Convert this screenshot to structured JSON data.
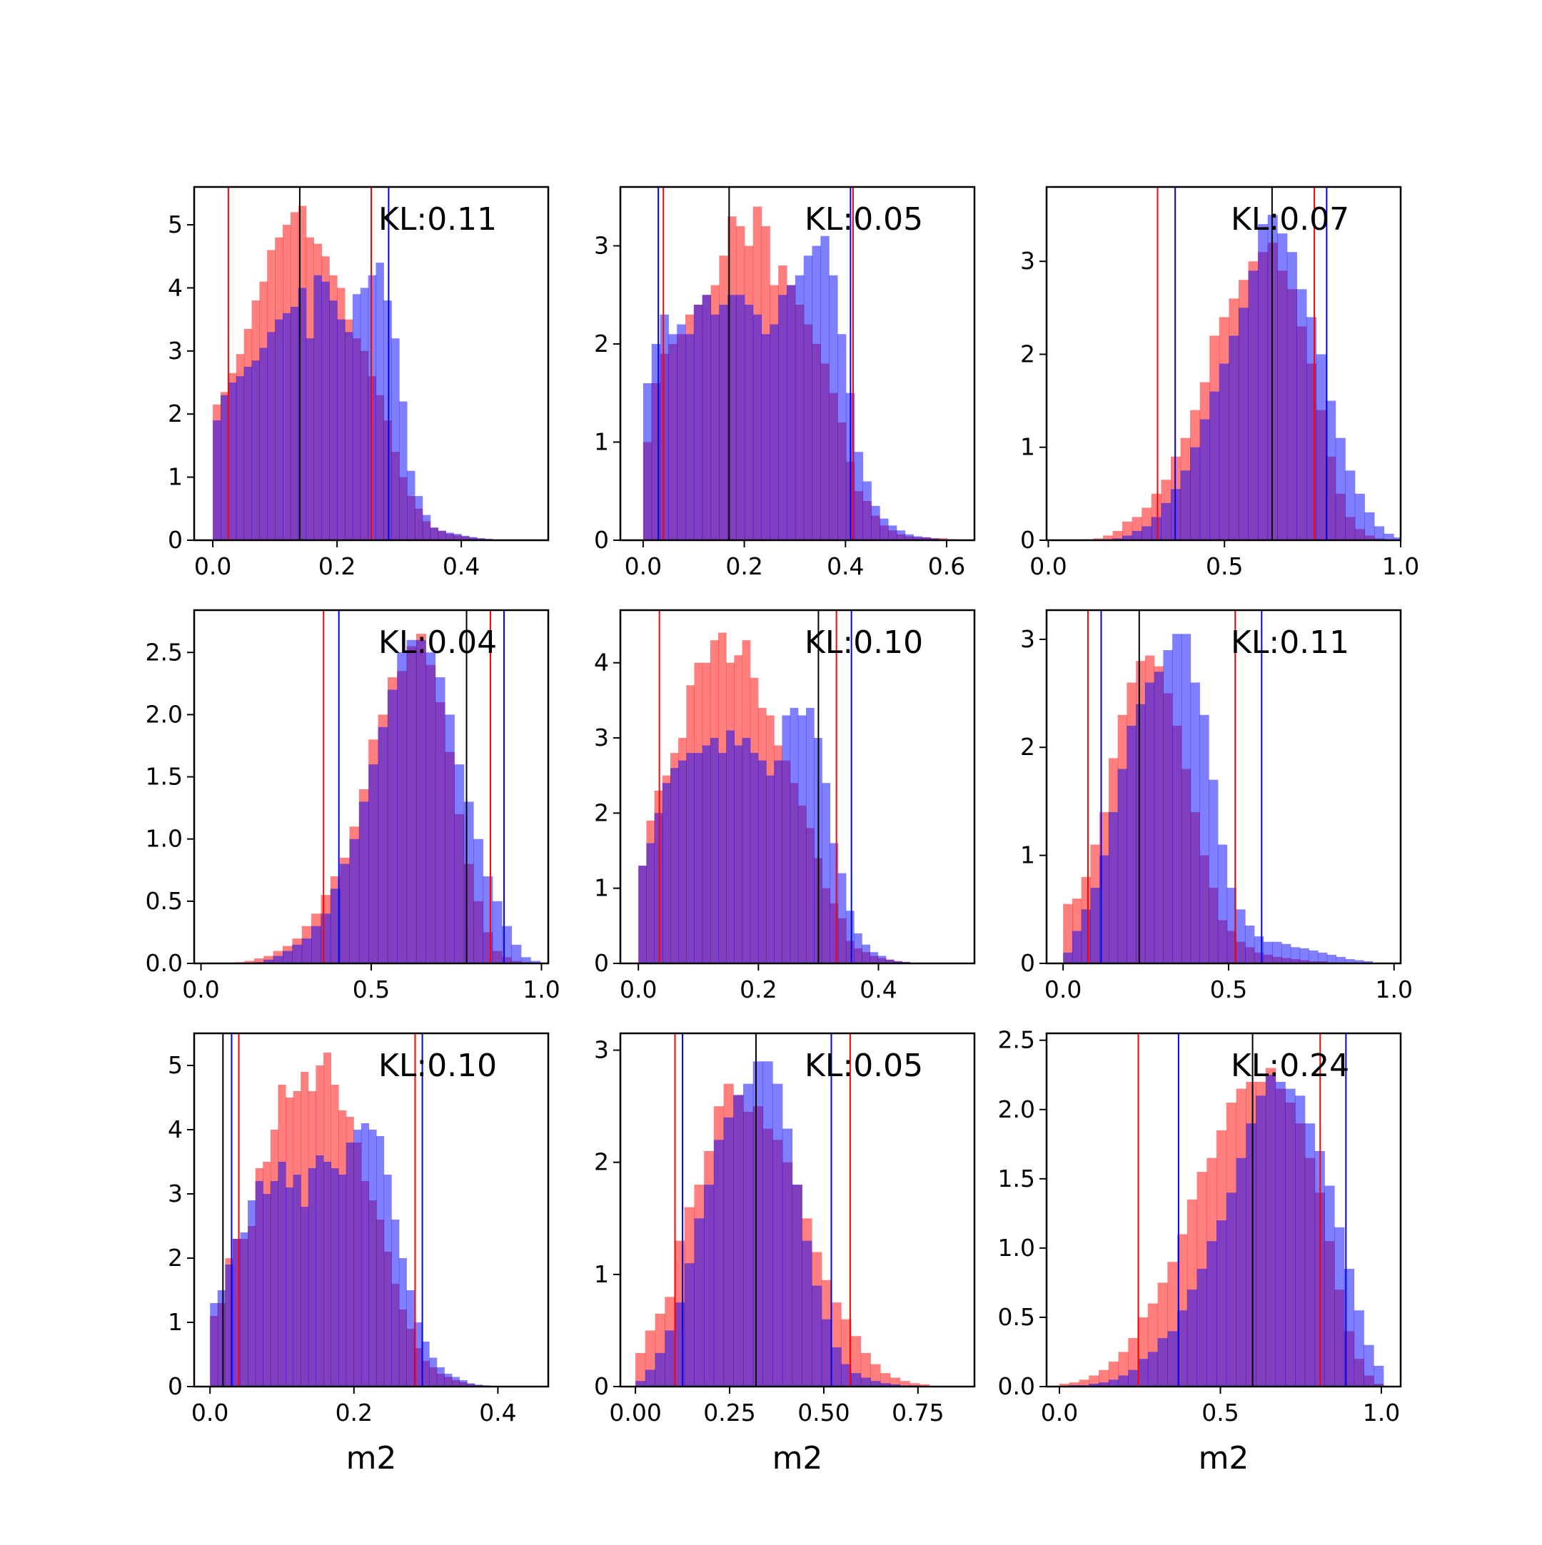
{
  "figure": {
    "colors": {
      "series_a": "#ff0000",
      "series_b": "#0000ff",
      "overlap": "#7f3fbf",
      "median_line": "#000000",
      "axes": "#000000"
    },
    "bar_opacity": 0.5
  },
  "chart_data": [
    {
      "type": "bar",
      "annotation": "KL:0.11",
      "xlabel": "",
      "xlim": [
        -0.03,
        0.54
      ],
      "ylim": [
        0,
        5.6
      ],
      "xticks": [
        "0.0",
        "0.2",
        "0.4"
      ],
      "xtick_values": [
        0.0,
        0.2,
        0.4
      ],
      "yticks": [
        "0",
        "1",
        "2",
        "3",
        "4",
        "5"
      ],
      "ytick_values": [
        0,
        1,
        2,
        3,
        4,
        5
      ],
      "bins": {
        "start": 0.0,
        "width": 0.0125
      },
      "series": [
        {
          "color": "red",
          "values": [
            2.15,
            2.35,
            2.65,
            2.95,
            3.35,
            3.8,
            4.1,
            4.6,
            4.8,
            5.0,
            5.2,
            5.3,
            4.8,
            4.7,
            4.5,
            4.2,
            4.0,
            3.5,
            3.2,
            3.0,
            2.6,
            2.3,
            1.9,
            1.4,
            1.0,
            0.7,
            0.5,
            0.3,
            0.2,
            0.15,
            0.1,
            0.08,
            0.06,
            0.04,
            0.03,
            0.02
          ]
        },
        {
          "color": "blue",
          "values": [
            1.9,
            2.3,
            2.5,
            2.6,
            2.75,
            2.85,
            3.05,
            3.3,
            3.5,
            3.6,
            3.7,
            4.0,
            3.2,
            4.2,
            4.1,
            3.8,
            3.5,
            3.3,
            3.9,
            4.0,
            4.2,
            4.4,
            3.8,
            3.2,
            2.2,
            1.1,
            0.7,
            0.4,
            0.2,
            0.15,
            0.12,
            0.1,
            0.07,
            0.05,
            0.03,
            0.02
          ]
        }
      ],
      "vlines": {
        "red": [
          0.025,
          0.255
        ],
        "blue": [
          0.283
        ],
        "black": [
          0.14
        ]
      }
    },
    {
      "type": "bar",
      "annotation": "KL:0.05",
      "xlabel": "",
      "xlim": [
        -0.045,
        0.655
      ],
      "ylim": [
        0,
        3.6
      ],
      "xticks": [
        "0.0",
        "0.2",
        "0.4",
        "0.6"
      ],
      "xtick_values": [
        0.0,
        0.2,
        0.4,
        0.6
      ],
      "yticks": [
        "0",
        "1",
        "2",
        "3"
      ],
      "ytick_values": [
        0,
        1,
        2,
        3
      ],
      "bins": {
        "start": 0.0,
        "width": 0.0167
      },
      "series": [
        {
          "color": "red",
          "values": [
            1.0,
            1.6,
            1.9,
            2.0,
            2.1,
            2.3,
            2.4,
            2.5,
            2.6,
            2.9,
            3.3,
            3.2,
            3.0,
            3.4,
            3.2,
            2.6,
            2.8,
            2.6,
            2.4,
            2.2,
            2.0,
            1.8,
            1.5,
            1.2,
            0.8,
            0.5,
            0.4,
            0.25,
            0.15,
            0.1,
            0.06,
            0.04,
            0.03,
            0.03,
            0.02,
            0.02,
            0.01
          ]
        },
        {
          "color": "blue",
          "values": [
            1.6,
            2.0,
            2.3,
            2.1,
            2.2,
            2.1,
            2.4,
            2.5,
            2.3,
            2.4,
            2.5,
            2.5,
            2.4,
            2.3,
            2.1,
            2.2,
            2.5,
            2.6,
            2.7,
            2.9,
            3.0,
            3.1,
            2.7,
            2.1,
            1.5,
            0.9,
            0.6,
            0.35,
            0.22,
            0.15,
            0.1,
            0.06,
            0.04,
            0.03,
            0.02,
            0.01,
            0.01
          ]
        }
      ],
      "vlines": {
        "red": [
          0.04,
          0.415
        ],
        "blue": [
          0.03,
          0.41
        ],
        "black": [
          0.17
        ]
      }
    },
    {
      "type": "bar",
      "annotation": "KL:0.07",
      "xlabel": "",
      "xlim": [
        -0.005,
        1.0
      ],
      "ylim": [
        0,
        3.8
      ],
      "xticks": [
        "0.0",
        "0.5",
        "1.0"
      ],
      "xtick_values": [
        0.0,
        0.5,
        1.0
      ],
      "yticks": [
        "0",
        "1",
        "2",
        "3"
      ],
      "ytick_values": [
        0,
        1,
        2,
        3
      ],
      "bins": {
        "start": 0.1,
        "width": 0.0275
      },
      "series": [
        {
          "color": "red",
          "values": [
            0.01,
            0.02,
            0.05,
            0.1,
            0.2,
            0.25,
            0.35,
            0.5,
            0.65,
            0.9,
            1.1,
            1.4,
            1.7,
            2.2,
            2.4,
            2.6,
            2.8,
            3.0,
            3.1,
            3.2,
            2.9,
            2.7,
            2.3,
            1.9,
            1.4,
            0.9,
            0.5,
            0.25,
            0.12,
            0.05,
            0.02,
            0.01,
            0.0
          ]
        },
        {
          "color": "blue",
          "values": [
            0.0,
            0.0,
            0.01,
            0.02,
            0.05,
            0.1,
            0.15,
            0.25,
            0.4,
            0.55,
            0.75,
            1.0,
            1.3,
            1.6,
            1.9,
            2.2,
            2.5,
            2.9,
            3.4,
            3.5,
            3.3,
            3.1,
            2.7,
            2.4,
            2.0,
            1.5,
            1.1,
            0.75,
            0.5,
            0.3,
            0.15,
            0.07,
            0.03
          ]
        }
      ],
      "vlines": {
        "red": [
          0.31,
          0.755
        ],
        "blue": [
          0.36,
          0.79
        ],
        "black": [
          0.635
        ]
      }
    },
    {
      "type": "bar",
      "annotation": "KL:0.04",
      "xlabel": "",
      "xlim": [
        -0.02,
        1.02
      ],
      "ylim": [
        0,
        2.84
      ],
      "xticks": [
        "0.0",
        "0.5",
        "1.0"
      ],
      "xtick_values": [
        0.0,
        0.5,
        1.0
      ],
      "yticks": [
        "0.0",
        "0.5",
        "1.0",
        "1.5",
        "2.0",
        "2.5"
      ],
      "ytick_values": [
        0.0,
        0.5,
        1.0,
        1.5,
        2.0,
        2.5
      ],
      "bins": {
        "start": 0.1,
        "width": 0.028
      },
      "series": [
        {
          "color": "red",
          "values": [
            0.01,
            0.02,
            0.04,
            0.06,
            0.1,
            0.14,
            0.2,
            0.3,
            0.4,
            0.55,
            0.7,
            0.85,
            1.1,
            1.4,
            1.8,
            2.0,
            2.3,
            2.35,
            2.55,
            2.65,
            2.4,
            2.1,
            1.7,
            1.2,
            0.8,
            0.5,
            0.25,
            0.1,
            0.05,
            0.02,
            0.01,
            0.0
          ]
        },
        {
          "color": "blue",
          "values": [
            0.0,
            0.0,
            0.01,
            0.03,
            0.06,
            0.1,
            0.15,
            0.2,
            0.3,
            0.4,
            0.6,
            0.8,
            1.0,
            1.3,
            1.6,
            1.9,
            2.2,
            2.5,
            2.6,
            2.6,
            2.5,
            2.3,
            2.0,
            1.6,
            1.3,
            1.0,
            0.7,
            0.5,
            0.3,
            0.15,
            0.05,
            0.02
          ]
        }
      ],
      "vlines": {
        "red": [
          0.36,
          0.85
        ],
        "blue": [
          0.405,
          0.89
        ],
        "black": [
          0.78
        ]
      }
    },
    {
      "type": "bar",
      "annotation": "KL:0.10",
      "xlabel": "",
      "xlim": [
        -0.03,
        0.56
      ],
      "ylim": [
        0,
        4.7
      ],
      "xticks": [
        "0.0",
        "0.2",
        "0.4"
      ],
      "xtick_values": [
        0.0,
        0.2,
        0.4
      ],
      "yticks": [
        "0",
        "1",
        "2",
        "3",
        "4"
      ],
      "ytick_values": [
        0,
        1,
        2,
        3,
        4
      ],
      "bins": {
        "start": 0.0,
        "width": 0.0133
      },
      "series": [
        {
          "color": "red",
          "values": [
            1.3,
            1.9,
            2.3,
            2.5,
            2.8,
            3.0,
            3.7,
            4.0,
            4.0,
            4.3,
            4.4,
            4.0,
            4.1,
            4.3,
            3.8,
            3.4,
            3.3,
            2.9,
            2.7,
            2.4,
            2.1,
            1.8,
            1.4,
            1.0,
            0.8,
            0.6,
            0.3,
            0.2,
            0.15,
            0.1,
            0.07,
            0.05,
            0.03,
            0.02
          ]
        },
        {
          "color": "blue",
          "values": [
            1.3,
            1.6,
            2.0,
            2.4,
            2.6,
            2.7,
            2.8,
            2.8,
            2.9,
            3.0,
            2.8,
            3.1,
            2.9,
            3.0,
            2.8,
            2.7,
            2.5,
            2.7,
            3.3,
            3.4,
            3.3,
            3.4,
            3.0,
            2.4,
            1.6,
            1.2,
            0.7,
            0.4,
            0.25,
            0.15,
            0.1,
            0.05,
            0.03,
            0.02
          ]
        }
      ],
      "vlines": {
        "red": [
          0.035,
          0.33
        ],
        "blue": [
          0.355
        ],
        "black": [
          0.3
        ]
      }
    },
    {
      "type": "bar",
      "annotation": "KL:0.11",
      "xlabel": "",
      "xlim": [
        -0.05,
        1.02
      ],
      "ylim": [
        0,
        3.27
      ],
      "xticks": [
        "0.0",
        "0.5",
        "1.0"
      ],
      "xtick_values": [
        0.0,
        0.5,
        1.0
      ],
      "yticks": [
        "0",
        "1",
        "2",
        "3"
      ],
      "ytick_values": [
        0,
        1,
        2,
        3
      ],
      "bins": {
        "start": 0.0,
        "width": 0.0275
      },
      "series": [
        {
          "color": "red",
          "values": [
            0.55,
            0.6,
            0.8,
            1.1,
            1.4,
            1.9,
            2.3,
            2.6,
            2.8,
            2.85,
            2.75,
            2.5,
            2.2,
            1.8,
            1.4,
            1.0,
            0.7,
            0.4,
            0.3,
            0.2,
            0.15,
            0.1,
            0.08,
            0.06,
            0.05,
            0.04,
            0.03,
            0.02,
            0.02,
            0.01,
            0.01,
            0.0,
            0.0,
            0.0
          ]
        },
        {
          "color": "blue",
          "values": [
            0.1,
            0.3,
            0.5,
            0.7,
            1.0,
            1.4,
            1.8,
            2.2,
            2.4,
            2.6,
            2.7,
            2.9,
            3.05,
            3.05,
            2.6,
            2.3,
            1.7,
            1.1,
            0.7,
            0.5,
            0.35,
            0.25,
            0.2,
            0.2,
            0.18,
            0.15,
            0.14,
            0.12,
            0.1,
            0.08,
            0.06,
            0.04,
            0.03,
            0.02
          ]
        }
      ],
      "vlines": {
        "red": [
          0.075,
          0.52
        ],
        "blue": [
          0.115,
          0.6
        ],
        "black": [
          0.23
        ]
      }
    },
    {
      "type": "bar",
      "annotation": "KL:0.10",
      "xlabel": "m2",
      "xlim": [
        -0.022,
        0.47
      ],
      "ylim": [
        0,
        5.5
      ],
      "xticks": [
        "0.0",
        "0.2",
        "0.4"
      ],
      "xtick_values": [
        0.0,
        0.2,
        0.4
      ],
      "yticks": [
        "0",
        "1",
        "2",
        "3",
        "4",
        "5"
      ],
      "ytick_values": [
        0,
        1,
        2,
        3,
        4,
        5
      ],
      "bins": {
        "start": 0.0,
        "width": 0.0105
      },
      "series": [
        {
          "color": "red",
          "values": [
            1.1,
            1.3,
            2.0,
            2.3,
            2.3,
            2.5,
            3.4,
            3.5,
            4.0,
            4.7,
            4.5,
            4.6,
            4.9,
            4.6,
            5.0,
            5.2,
            4.7,
            4.3,
            4.2,
            3.8,
            3.2,
            2.9,
            2.6,
            2.1,
            1.6,
            1.2,
            0.9,
            0.6,
            0.4,
            0.3,
            0.2,
            0.15,
            0.1,
            0.07,
            0.04,
            0.02,
            0.01
          ]
        },
        {
          "color": "blue",
          "values": [
            1.3,
            1.5,
            1.9,
            2.3,
            2.4,
            2.9,
            3.2,
            3.0,
            3.2,
            3.5,
            3.1,
            3.3,
            2.8,
            3.4,
            3.6,
            3.5,
            3.4,
            3.3,
            3.8,
            4.0,
            4.1,
            4.0,
            3.9,
            3.3,
            2.6,
            2.0,
            1.5,
            1.0,
            0.7,
            0.45,
            0.3,
            0.2,
            0.15,
            0.1,
            0.05,
            0.03,
            0.02
          ]
        }
      ],
      "vlines": {
        "red": [
          0.04,
          0.285
        ],
        "blue": [
          0.03,
          0.295
        ],
        "black": [
          0.018
        ]
      }
    },
    {
      "type": "bar",
      "annotation": "KL:0.05",
      "xlabel": "m2",
      "xlim": [
        -0.04,
        0.9
      ],
      "ylim": [
        0,
        3.15
      ],
      "xticks": [
        "0.00",
        "0.25",
        "0.50",
        "0.75"
      ],
      "xtick_values": [
        0.0,
        0.25,
        0.5,
        0.75
      ],
      "yticks": [
        "0",
        "1",
        "2",
        "3"
      ],
      "ytick_values": [
        0,
        1,
        2,
        3
      ],
      "bins": {
        "start": 0.0,
        "width": 0.026
      },
      "series": [
        {
          "color": "red",
          "values": [
            0.3,
            0.5,
            0.65,
            0.8,
            1.3,
            1.6,
            1.8,
            2.1,
            2.5,
            2.7,
            2.6,
            2.45,
            2.5,
            2.3,
            2.2,
            2.0,
            1.8,
            1.5,
            1.2,
            0.95,
            0.75,
            0.6,
            0.45,
            0.3,
            0.2,
            0.12,
            0.08,
            0.05,
            0.03,
            0.02
          ]
        },
        {
          "color": "blue",
          "values": [
            0.05,
            0.15,
            0.3,
            0.5,
            0.75,
            1.1,
            1.5,
            1.8,
            2.2,
            2.4,
            2.6,
            2.7,
            2.9,
            2.9,
            2.7,
            2.3,
            1.8,
            1.3,
            0.9,
            0.6,
            0.35,
            0.2,
            0.12,
            0.08,
            0.05,
            0.03,
            0.02,
            0.01,
            0.01,
            0.0
          ]
        }
      ],
      "vlines": {
        "red": [
          0.105,
          0.57
        ],
        "blue": [
          0.125,
          0.52
        ],
        "black": [
          0.32
        ]
      }
    },
    {
      "type": "bar",
      "annotation": "KL:0.24",
      "xlabel": "m2",
      "xlim": [
        -0.04,
        1.06
      ],
      "ylim": [
        0,
        2.55
      ],
      "xticks": [
        "0.0",
        "0.5",
        "1.0"
      ],
      "xtick_values": [
        0.0,
        0.5,
        1.0
      ],
      "yticks": [
        "0.0",
        "0.5",
        "1.0",
        "1.5",
        "2.0",
        "2.5"
      ],
      "ytick_values": [
        0.0,
        0.5,
        1.0,
        1.5,
        2.0,
        2.5
      ],
      "bins": {
        "start": 0.0,
        "width": 0.0305
      },
      "series": [
        {
          "color": "red",
          "values": [
            0.02,
            0.03,
            0.05,
            0.08,
            0.12,
            0.18,
            0.25,
            0.35,
            0.5,
            0.6,
            0.75,
            0.9,
            1.1,
            1.35,
            1.55,
            1.65,
            1.85,
            2.05,
            2.15,
            2.2,
            2.2,
            2.3,
            2.15,
            2.05,
            1.9,
            1.65,
            1.4,
            1.05,
            0.7,
            0.4,
            0.2,
            0.08,
            0.02
          ]
        },
        {
          "color": "blue",
          "values": [
            0.0,
            0.01,
            0.01,
            0.02,
            0.03,
            0.05,
            0.08,
            0.12,
            0.2,
            0.25,
            0.35,
            0.4,
            0.55,
            0.7,
            0.85,
            1.05,
            1.2,
            1.4,
            1.65,
            1.9,
            2.1,
            2.25,
            2.2,
            2.15,
            2.1,
            1.9,
            1.7,
            1.45,
            1.15,
            0.85,
            0.55,
            0.3,
            0.15
          ]
        }
      ],
      "vlines": {
        "red": [
          0.245,
          0.81
        ],
        "blue": [
          0.37,
          0.89
        ],
        "black": [
          0.6
        ]
      }
    }
  ]
}
